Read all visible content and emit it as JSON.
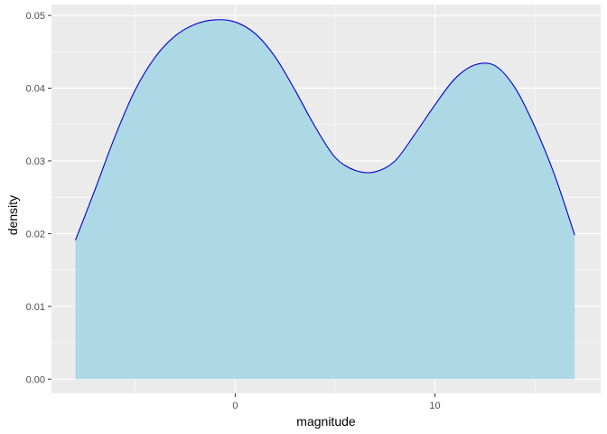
{
  "chart_data": {
    "type": "area",
    "title": "",
    "xlabel": "magnitude",
    "ylabel": "density",
    "xlim": [
      -9.2,
      18.3
    ],
    "ylim": [
      -0.00195,
      0.0515
    ],
    "x_ticks": [
      0,
      10
    ],
    "x_minor_ticks": [
      -5,
      5,
      15
    ],
    "y_ticks": [
      0.0,
      0.01,
      0.02,
      0.03,
      0.04,
      0.05
    ],
    "y_tick_labels": [
      "0.00",
      "0.01",
      "0.02",
      "0.03",
      "0.04",
      "0.05"
    ],
    "grid": true,
    "legend": "none",
    "x": [
      -8.0,
      -7.0,
      -6.0,
      -5.0,
      -4.0,
      -3.0,
      -2.0,
      -1.0,
      0.0,
      1.0,
      2.0,
      3.0,
      4.0,
      5.0,
      6.0,
      7.0,
      8.0,
      9.0,
      10.0,
      11.0,
      12.0,
      13.0,
      14.0,
      15.0,
      16.0,
      17.0
    ],
    "y": [
      0.0191,
      0.0262,
      0.0335,
      0.0398,
      0.0443,
      0.0472,
      0.0488,
      0.0494,
      0.0491,
      0.0475,
      0.0443,
      0.0397,
      0.0347,
      0.0305,
      0.0287,
      0.0285,
      0.03,
      0.0337,
      0.0377,
      0.0413,
      0.0432,
      0.0431,
      0.0401,
      0.0347,
      0.028,
      0.0198
    ],
    "colors": {
      "fill": "#add8e6",
      "line": "#0000cd",
      "panel": "#ebebeb",
      "grid": "#ffffff",
      "tick": "#333333"
    }
  }
}
